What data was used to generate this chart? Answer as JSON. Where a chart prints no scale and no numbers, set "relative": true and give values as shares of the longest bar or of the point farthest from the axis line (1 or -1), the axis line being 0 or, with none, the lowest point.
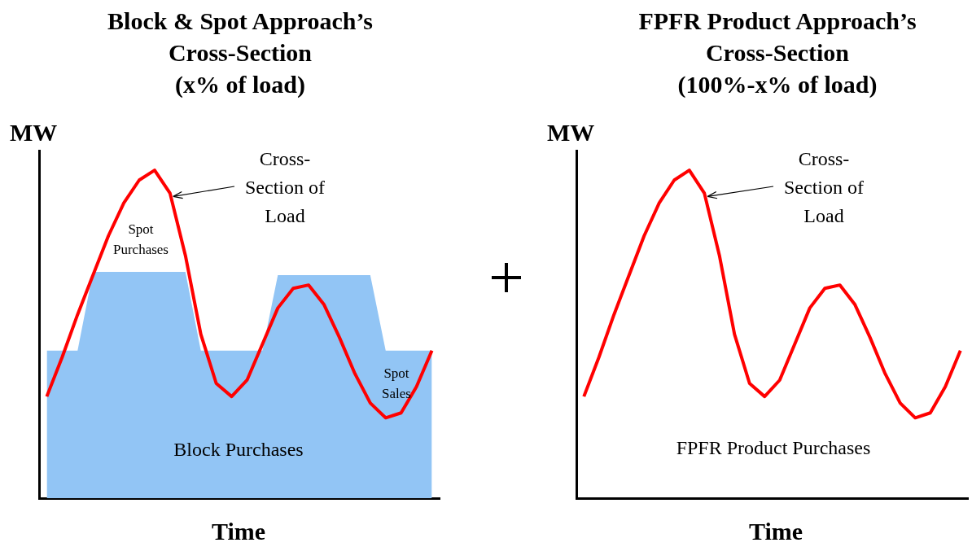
{
  "chart_data": [
    {
      "type": "line",
      "title": "Block & Spot Approach’s\nCross-Section\n(x% of load)",
      "xlabel": "Time",
      "ylabel": "MW",
      "relative": true,
      "categories": [
        null,
        null,
        null,
        null,
        null,
        null,
        null,
        null,
        null,
        null,
        null,
        null,
        null,
        null,
        null,
        null,
        null,
        null,
        null,
        null,
        null,
        null,
        null,
        null,
        null,
        null
      ],
      "series": [
        {
          "type": "area",
          "color": "#92c5f5",
          "values": [
            0.45,
            0.45,
            0.45,
            0.69,
            0.69,
            0.69,
            0.69,
            0.69,
            0.69,
            0.69,
            0.45,
            0.45,
            0.45,
            0.45,
            0.45,
            0.68,
            0.68,
            0.68,
            0.68,
            0.68,
            0.68,
            0.68,
            0.45,
            0.45,
            0.45,
            0.45
          ]
        },
        {
          "color": "#ff0000",
          "values": [
            0.31,
            0.43,
            0.56,
            0.68,
            0.8,
            0.9,
            0.97,
            1,
            0.93,
            0.74,
            0.5,
            0.35,
            0.31,
            0.36,
            0.47,
            0.58,
            0.64,
            0.65,
            0.59,
            0.49,
            0.38,
            0.29,
            0.245,
            0.26,
            0.34,
            0.45
          ]
        }
      ],
      "annotations": [
        "Cross-Section of Load",
        "Spot Purchases",
        "Spot Sales",
        "Block Purchases"
      ]
    },
    {
      "type": "line",
      "title": "FPFR Product Approach’s\nCross-Section\n(100%-x% of load)",
      "xlabel": "Time",
      "ylabel": "MW",
      "relative": true,
      "categories": [
        null,
        null,
        null,
        null,
        null,
        null,
        null,
        null,
        null,
        null,
        null,
        null,
        null,
        null,
        null,
        null,
        null,
        null,
        null,
        null,
        null,
        null,
        null,
        null,
        null,
        null
      ],
      "series": [
        {
          "color": "#ff0000",
          "values": [
            0.31,
            0.43,
            0.56,
            0.68,
            0.8,
            0.9,
            0.97,
            1,
            0.93,
            0.74,
            0.5,
            0.35,
            0.31,
            0.36,
            0.47,
            0.58,
            0.64,
            0.65,
            0.59,
            0.49,
            0.38,
            0.29,
            0.245,
            0.26,
            0.34,
            0.45
          ]
        }
      ],
      "annotations": [
        "Cross-Section of Load",
        "FPFR Product Purchases"
      ]
    }
  ]
}
